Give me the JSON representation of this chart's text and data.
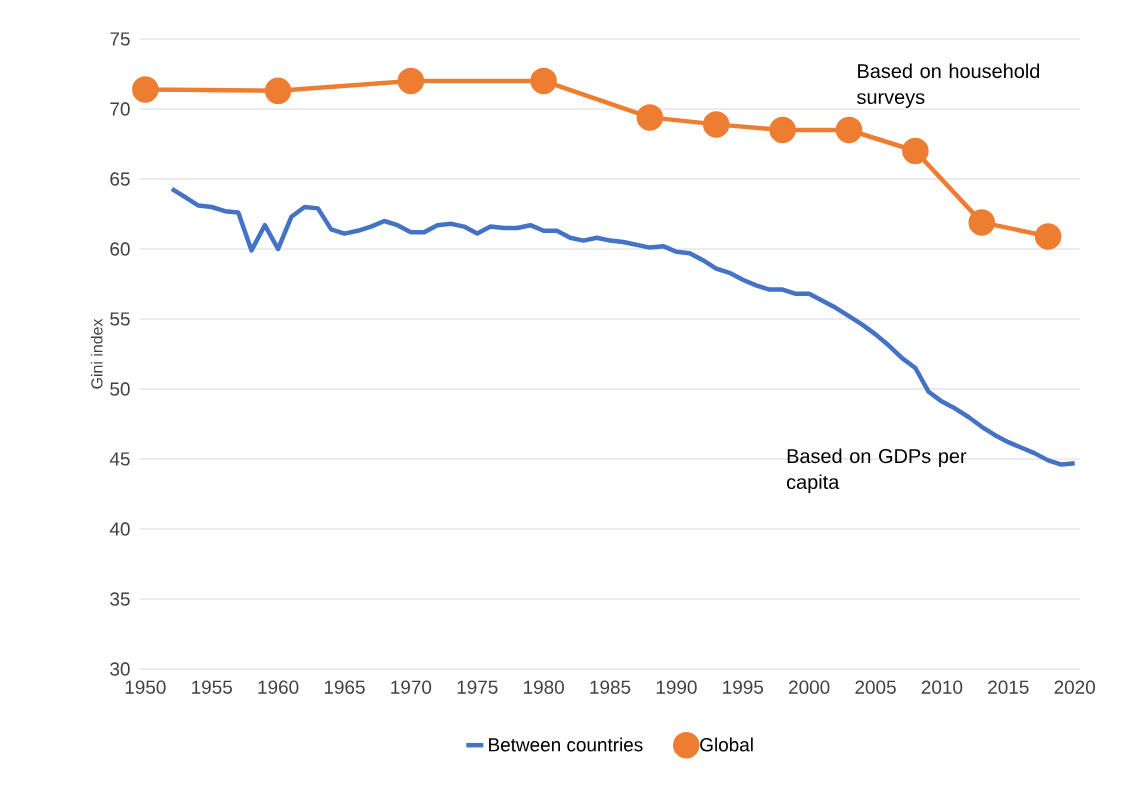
{
  "chart_data": {
    "type": "line",
    "ylabel": "Gini index",
    "xlim": [
      1949.6,
      2020.4
    ],
    "xticks": [
      1950,
      1955,
      1960,
      1965,
      1970,
      1975,
      1980,
      1985,
      1990,
      1995,
      2000,
      2005,
      2010,
      2015,
      2020
    ],
    "ylim": [
      30,
      75
    ],
    "yticks": [
      30,
      35,
      40,
      45,
      50,
      55,
      60,
      65,
      70,
      75
    ],
    "grid": "y",
    "legend": "bottom",
    "annotations": [
      "Based on household surveys",
      "Based on GDPs per capita"
    ],
    "series": [
      {
        "name": "Between countries",
        "color": "#4472c4",
        "marker": "none",
        "x": [
          1952,
          1953,
          1954,
          1955,
          1956,
          1957,
          1958,
          1959,
          1960,
          1961,
          1962,
          1963,
          1964,
          1965,
          1966,
          1967,
          1968,
          1969,
          1970,
          1971,
          1972,
          1973,
          1974,
          1975,
          1976,
          1977,
          1978,
          1979,
          1980,
          1981,
          1982,
          1983,
          1984,
          1985,
          1986,
          1987,
          1988,
          1989,
          1990,
          1991,
          1992,
          1993,
          1994,
          1995,
          1996,
          1997,
          1998,
          1999,
          2000,
          2001,
          2002,
          2003,
          2004,
          2005,
          2006,
          2007,
          2008,
          2009,
          2010,
          2011,
          2012,
          2013,
          2014,
          2015,
          2016,
          2017,
          2018,
          2019,
          2020
        ],
        "values": [
          64.3,
          63.7,
          63.1,
          63.0,
          62.7,
          62.6,
          59.9,
          61.7,
          60.0,
          62.3,
          63.0,
          62.9,
          61.4,
          61.1,
          61.3,
          61.6,
          62.0,
          61.7,
          61.2,
          61.2,
          61.7,
          61.8,
          61.6,
          61.1,
          61.6,
          61.5,
          61.5,
          61.7,
          61.3,
          61.3,
          60.8,
          60.6,
          60.8,
          60.6,
          60.5,
          60.3,
          60.1,
          60.2,
          59.8,
          59.7,
          59.2,
          58.6,
          58.3,
          57.8,
          57.4,
          57.1,
          57.1,
          56.8,
          56.8,
          56.3,
          55.8,
          55.2,
          54.6,
          53.9,
          53.1,
          52.2,
          51.5,
          49.8,
          49.1,
          48.6,
          48.0,
          47.3,
          46.7,
          46.2,
          45.8,
          45.4,
          44.9,
          44.6,
          44.7
        ]
      },
      {
        "name": "Global",
        "color": "#ed7d31",
        "marker": "circle",
        "x": [
          1950,
          1960,
          1970,
          1980,
          1988,
          1993,
          1998,
          2003,
          2008,
          2013,
          2018
        ],
        "values": [
          71.4,
          71.3,
          72.0,
          72.0,
          69.4,
          68.9,
          68.5,
          68.5,
          67.0,
          61.9,
          60.9
        ]
      }
    ]
  }
}
